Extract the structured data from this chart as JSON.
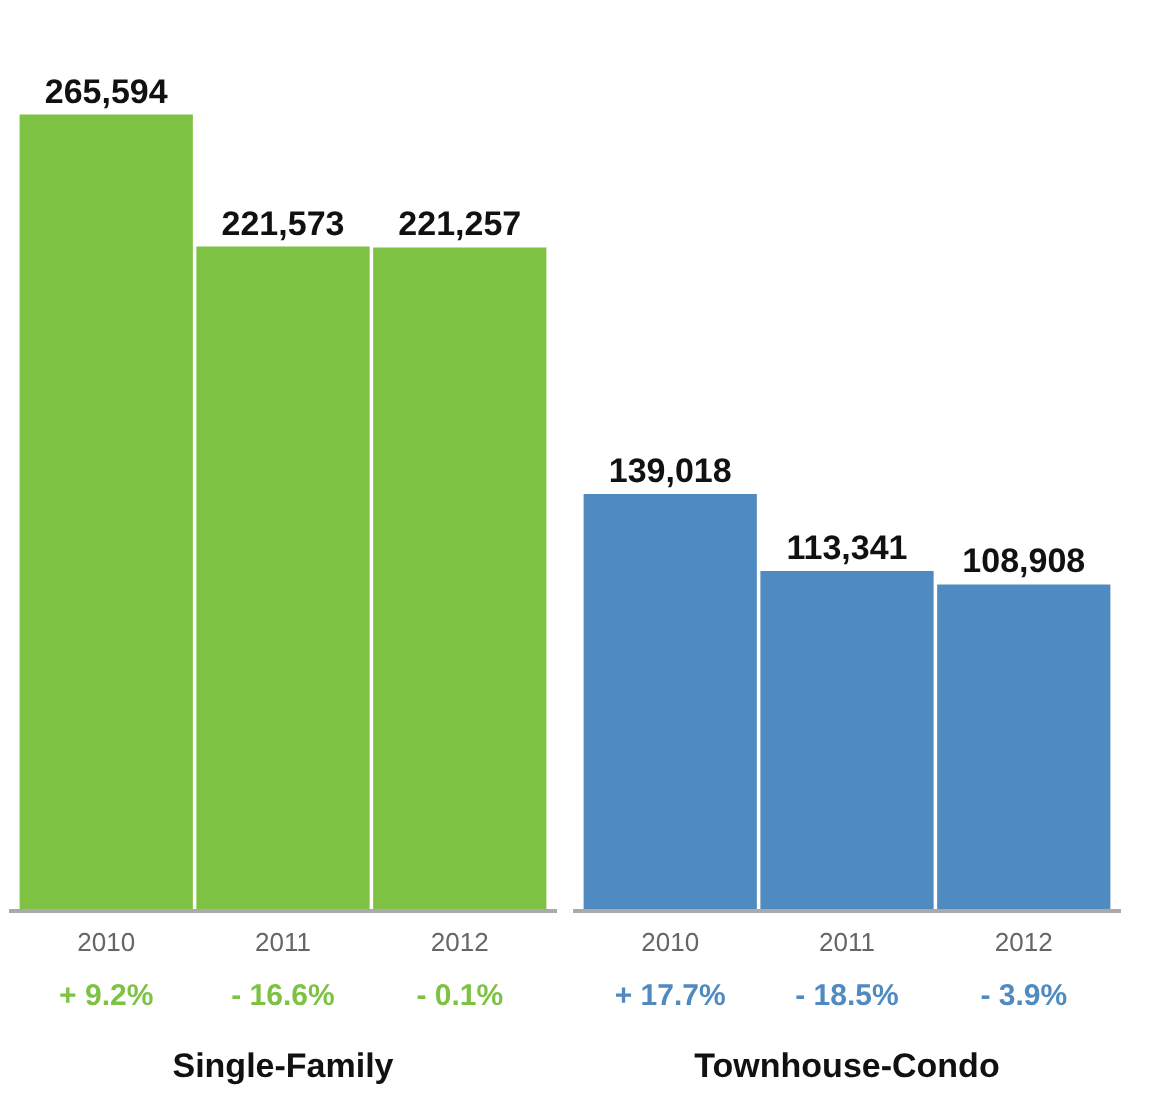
{
  "chart_data": [
    {
      "type": "bar",
      "categories": [
        "2010",
        "2011",
        "2012"
      ],
      "values": [
        265594,
        221573,
        221257
      ],
      "color": "#7dc242",
      "value_labels": [
        "265,594",
        "221,573",
        "221,257"
      ],
      "xlabel": "Single-Family",
      "grid": false,
      "annotations": [
        "+ 9.2%",
        "- 16.6%",
        "- 0.1%"
      ]
    },
    {
      "type": "bar",
      "categories": [
        "2010",
        "2011",
        "2012"
      ],
      "values": [
        139018,
        113341,
        108908
      ],
      "color": "#4f8bc0",
      "value_labels": [
        "139,018",
        "113,341",
        "108,908"
      ],
      "xlabel": "Townhouse-Condo",
      "grid": false,
      "annotations": [
        "+ 17.7%",
        "- 18.5%",
        "- 3.9%"
      ]
    }
  ]
}
